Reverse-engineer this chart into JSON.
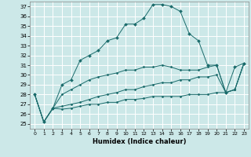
{
  "title": "",
  "xlabel": "Humidex (Indice chaleur)",
  "xlim": [
    -0.5,
    23.5
  ],
  "ylim": [
    24.5,
    37.5
  ],
  "yticks": [
    25,
    26,
    27,
    28,
    29,
    30,
    31,
    32,
    33,
    34,
    35,
    36,
    37
  ],
  "xticks": [
    0,
    1,
    2,
    3,
    4,
    5,
    6,
    7,
    8,
    9,
    10,
    11,
    12,
    13,
    14,
    15,
    16,
    17,
    18,
    19,
    20,
    21,
    22,
    23
  ],
  "background_color": "#cce8e8",
  "grid_color": "#ffffff",
  "line_color": "#1a6b6b",
  "lines": [
    {
      "x": [
        0,
        1,
        2,
        3,
        4,
        5,
        6,
        7,
        8,
        9,
        10,
        11,
        12,
        13,
        14,
        15,
        16,
        17,
        18,
        19,
        20,
        21,
        22,
        23
      ],
      "y": [
        28.0,
        25.2,
        26.6,
        29.0,
        29.5,
        31.5,
        32.0,
        32.5,
        33.5,
        33.8,
        35.2,
        35.2,
        35.8,
        37.2,
        37.2,
        37.0,
        36.5,
        34.2,
        33.5,
        31.0,
        31.0,
        28.2,
        30.8,
        31.2
      ],
      "marker": "D",
      "markersize": 2.0,
      "has_marker": true
    },
    {
      "x": [
        0,
        1,
        2,
        3,
        4,
        5,
        6,
        7,
        8,
        9,
        10,
        11,
        12,
        13,
        14,
        15,
        16,
        17,
        18,
        19,
        20,
        21,
        22,
        23
      ],
      "y": [
        28.0,
        25.2,
        26.6,
        28.0,
        28.5,
        29.0,
        29.5,
        29.8,
        30.0,
        30.2,
        30.5,
        30.5,
        30.8,
        30.8,
        31.0,
        30.8,
        30.5,
        30.5,
        30.5,
        30.8,
        31.0,
        28.2,
        28.5,
        31.2
      ],
      "marker": "D",
      "markersize": 1.5,
      "has_marker": true
    },
    {
      "x": [
        0,
        1,
        2,
        3,
        4,
        5,
        6,
        7,
        8,
        9,
        10,
        11,
        12,
        13,
        14,
        15,
        16,
        17,
        18,
        19,
        20,
        21,
        22,
        23
      ],
      "y": [
        28.0,
        25.2,
        26.6,
        26.8,
        27.0,
        27.2,
        27.5,
        27.8,
        28.0,
        28.2,
        28.5,
        28.5,
        28.8,
        29.0,
        29.2,
        29.2,
        29.5,
        29.5,
        29.8,
        29.8,
        30.0,
        28.2,
        28.5,
        31.2
      ],
      "marker": "D",
      "markersize": 1.5,
      "has_marker": true
    },
    {
      "x": [
        0,
        1,
        2,
        3,
        4,
        5,
        6,
        7,
        8,
        9,
        10,
        11,
        12,
        13,
        14,
        15,
        16,
        17,
        18,
        19,
        20,
        21,
        22,
        23
      ],
      "y": [
        28.0,
        25.2,
        26.6,
        26.5,
        26.6,
        26.8,
        27.0,
        27.0,
        27.2,
        27.2,
        27.5,
        27.5,
        27.6,
        27.8,
        27.8,
        27.8,
        27.8,
        28.0,
        28.0,
        28.0,
        28.2,
        28.2,
        28.5,
        31.2
      ],
      "marker": "D",
      "markersize": 1.5,
      "has_marker": true
    }
  ]
}
